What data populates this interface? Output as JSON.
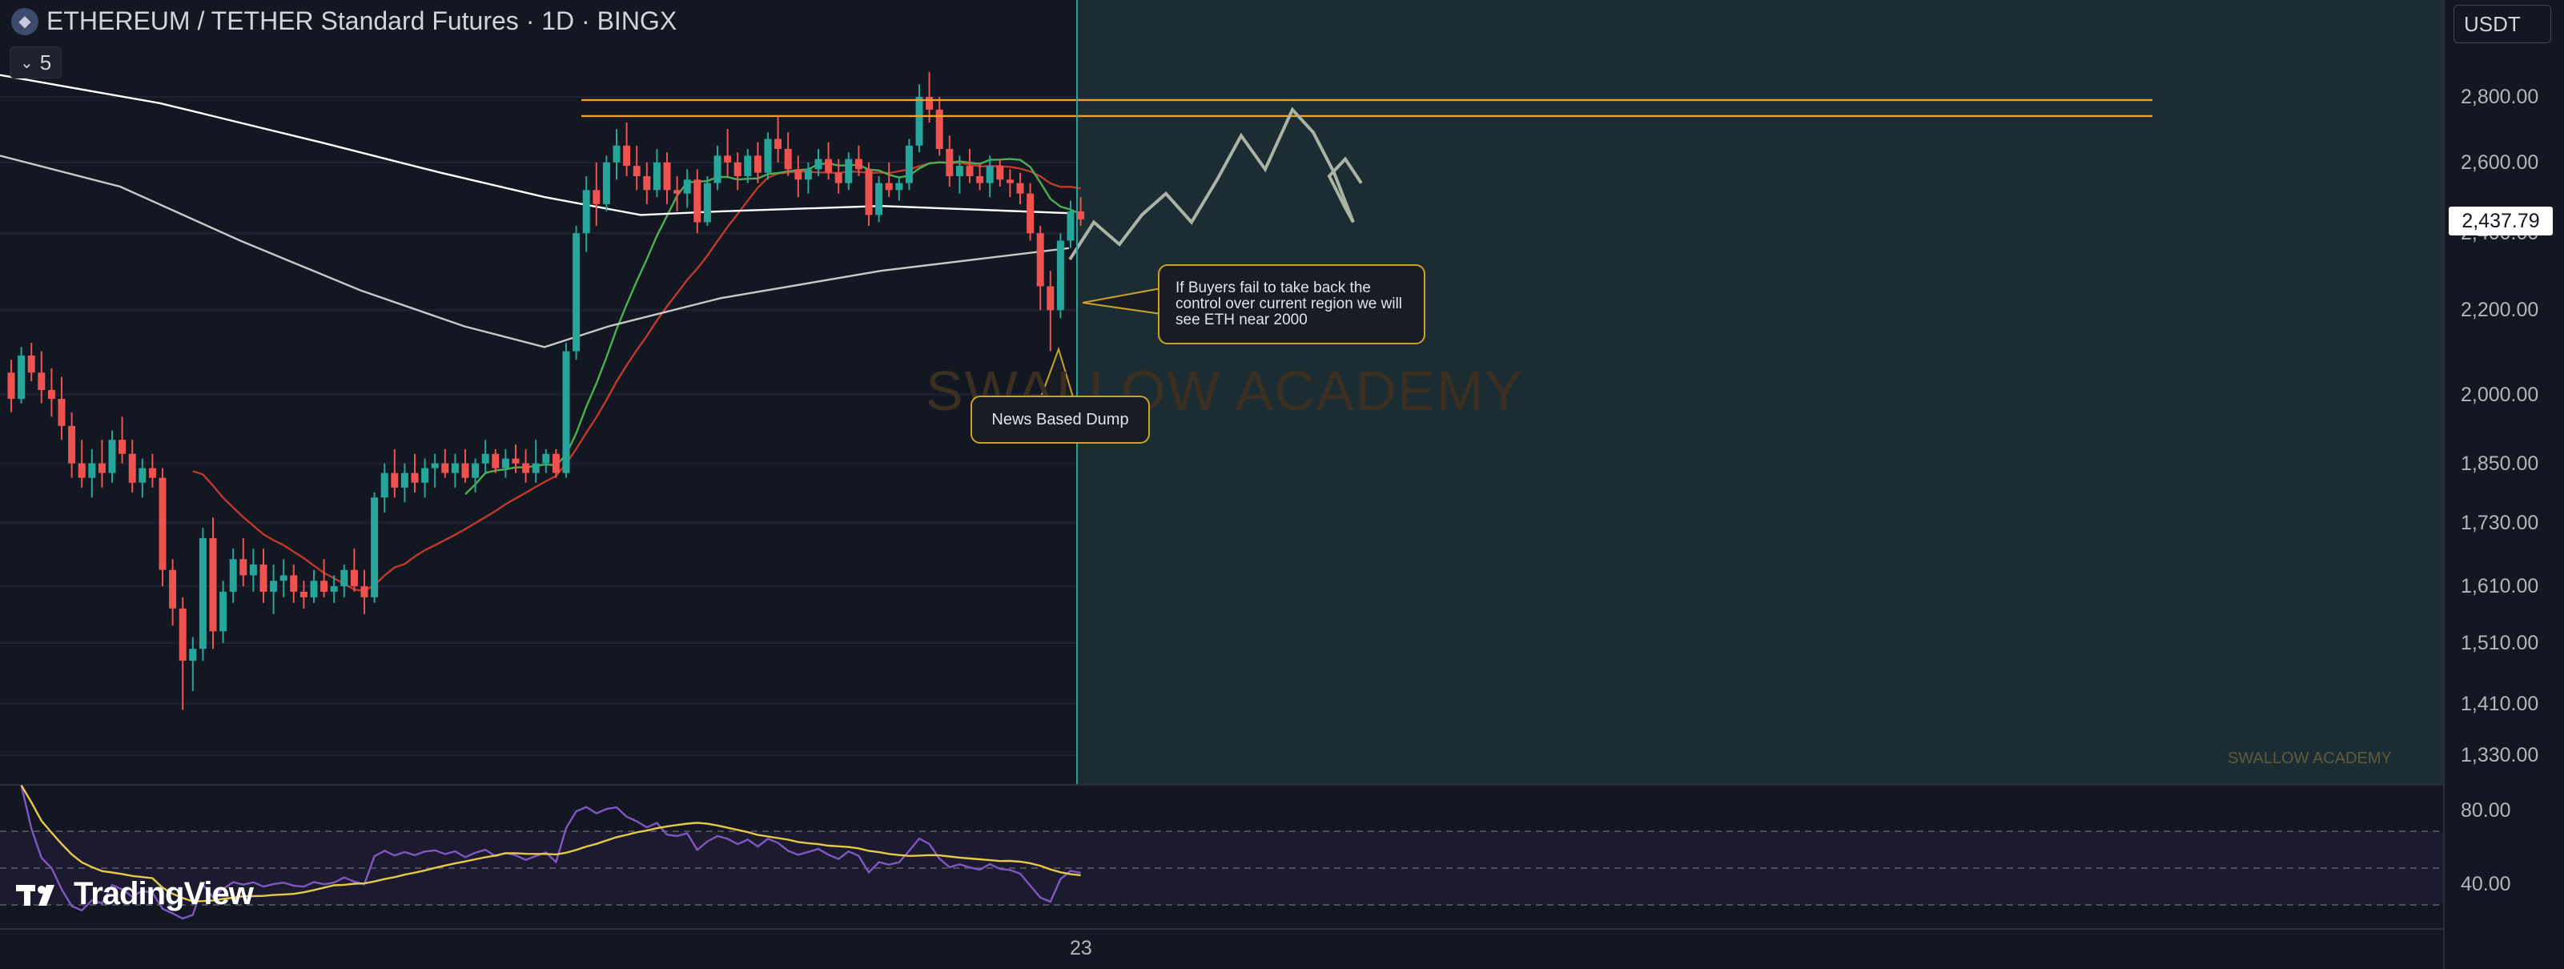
{
  "header": {
    "title": "ETHEREUM / TETHER Standard Futures · 1D · BINGX",
    "indicator_count": "5",
    "currency": "USDT"
  },
  "price_axis": {
    "labels": [
      "2,800.00",
      "2,600.00",
      "2,400.00",
      "2,200.00",
      "2,000.00",
      "1,850.00",
      "1,730.00",
      "1,610.00",
      "1,510.00",
      "1,410.00",
      "1,330.00"
    ],
    "last_price": "2,437.79"
  },
  "rsi_axis": {
    "labels": [
      "80.00",
      "40.00"
    ]
  },
  "time_axis": {
    "labels": [
      "23"
    ]
  },
  "annotations": {
    "buyers_note": "If Buyers fail to take back the control over current region we will see ETH near 2000",
    "dump_note": "News Based Dump"
  },
  "watermark": "SWALLOW ACADEMY",
  "watermark_small": "SWALLOW ACADEMY",
  "logo": "TradingView",
  "colors": {
    "background": "#131722",
    "up": "#26a69a",
    "down": "#ef5350",
    "resistance": "#f0a030",
    "projection_zone": "#1b2d33",
    "projection_path": "#a9b4a5",
    "ma_white": "#ffffff",
    "ma_grey": "#c8c8c8",
    "ma_green": "#4caf50",
    "ma_red": "#c0392b",
    "rsi_line": "#7e57c2",
    "rsi_ma": "#e6c84a"
  },
  "chart_data": {
    "type": "candlestick",
    "title": "ETHEREUM / TETHER Standard Futures · 1D · BINGX",
    "scale": "log",
    "ylim": [
      1300,
      2900
    ],
    "ohlc": [
      [
        2050,
        2080,
        1960,
        1990
      ],
      [
        1990,
        2110,
        1980,
        2090
      ],
      [
        2090,
        2120,
        2030,
        2050
      ],
      [
        2050,
        2100,
        1980,
        2010
      ],
      [
        2010,
        2060,
        1950,
        1990
      ],
      [
        1990,
        2040,
        1900,
        1930
      ],
      [
        1930,
        1960,
        1820,
        1850
      ],
      [
        1850,
        1900,
        1800,
        1820
      ],
      [
        1820,
        1880,
        1780,
        1850
      ],
      [
        1850,
        1900,
        1800,
        1830
      ],
      [
        1830,
        1920,
        1810,
        1900
      ],
      [
        1900,
        1950,
        1850,
        1870
      ],
      [
        1870,
        1900,
        1790,
        1810
      ],
      [
        1810,
        1860,
        1780,
        1840
      ],
      [
        1840,
        1870,
        1800,
        1820
      ],
      [
        1820,
        1840,
        1610,
        1640
      ],
      [
        1640,
        1660,
        1540,
        1570
      ],
      [
        1570,
        1590,
        1400,
        1480
      ],
      [
        1480,
        1520,
        1430,
        1500
      ],
      [
        1500,
        1720,
        1480,
        1700
      ],
      [
        1700,
        1740,
        1500,
        1530
      ],
      [
        1530,
        1620,
        1510,
        1600
      ],
      [
        1600,
        1680,
        1580,
        1660
      ],
      [
        1660,
        1700,
        1610,
        1630
      ],
      [
        1630,
        1680,
        1600,
        1650
      ],
      [
        1650,
        1680,
        1580,
        1600
      ],
      [
        1600,
        1650,
        1560,
        1620
      ],
      [
        1620,
        1660,
        1590,
        1630
      ],
      [
        1630,
        1650,
        1580,
        1600
      ],
      [
        1600,
        1620,
        1570,
        1590
      ],
      [
        1590,
        1640,
        1580,
        1620
      ],
      [
        1620,
        1660,
        1590,
        1600
      ],
      [
        1600,
        1630,
        1580,
        1610
      ],
      [
        1610,
        1650,
        1590,
        1640
      ],
      [
        1640,
        1680,
        1600,
        1610
      ],
      [
        1610,
        1640,
        1560,
        1590
      ],
      [
        1590,
        1790,
        1580,
        1780
      ],
      [
        1780,
        1850,
        1750,
        1830
      ],
      [
        1830,
        1880,
        1780,
        1800
      ],
      [
        1800,
        1850,
        1770,
        1830
      ],
      [
        1830,
        1870,
        1790,
        1810
      ],
      [
        1810,
        1860,
        1780,
        1840
      ],
      [
        1840,
        1870,
        1800,
        1850
      ],
      [
        1850,
        1880,
        1820,
        1830
      ],
      [
        1830,
        1870,
        1800,
        1850
      ],
      [
        1850,
        1880,
        1810,
        1820
      ],
      [
        1820,
        1860,
        1790,
        1850
      ],
      [
        1850,
        1900,
        1830,
        1870
      ],
      [
        1870,
        1880,
        1830,
        1840
      ],
      [
        1840,
        1880,
        1820,
        1860
      ],
      [
        1860,
        1890,
        1830,
        1850
      ],
      [
        1850,
        1880,
        1810,
        1830
      ],
      [
        1830,
        1900,
        1810,
        1850
      ],
      [
        1850,
        1880,
        1830,
        1870
      ],
      [
        1870,
        1880,
        1820,
        1830
      ],
      [
        1830,
        2120,
        1820,
        2100
      ],
      [
        2100,
        2420,
        2080,
        2400
      ],
      [
        2400,
        2560,
        2350,
        2520
      ],
      [
        2520,
        2600,
        2420,
        2480
      ],
      [
        2480,
        2620,
        2460,
        2600
      ],
      [
        2600,
        2700,
        2550,
        2650
      ],
      [
        2650,
        2720,
        2560,
        2590
      ],
      [
        2590,
        2650,
        2520,
        2560
      ],
      [
        2560,
        2600,
        2480,
        2520
      ],
      [
        2520,
        2640,
        2500,
        2600
      ],
      [
        2600,
        2630,
        2480,
        2520
      ],
      [
        2520,
        2560,
        2460,
        2510
      ],
      [
        2510,
        2580,
        2470,
        2550
      ],
      [
        2550,
        2580,
        2400,
        2430
      ],
      [
        2430,
        2560,
        2420,
        2540
      ],
      [
        2540,
        2650,
        2520,
        2620
      ],
      [
        2620,
        2700,
        2560,
        2600
      ],
      [
        2600,
        2630,
        2520,
        2560
      ],
      [
        2560,
        2640,
        2540,
        2620
      ],
      [
        2620,
        2660,
        2540,
        2570
      ],
      [
        2570,
        2690,
        2550,
        2670
      ],
      [
        2670,
        2740,
        2600,
        2640
      ],
      [
        2640,
        2690,
        2560,
        2580
      ],
      [
        2580,
        2620,
        2500,
        2550
      ],
      [
        2550,
        2600,
        2510,
        2580
      ],
      [
        2580,
        2640,
        2560,
        2610
      ],
      [
        2610,
        2660,
        2550,
        2570
      ],
      [
        2570,
        2610,
        2510,
        2540
      ],
      [
        2540,
        2630,
        2520,
        2610
      ],
      [
        2610,
        2650,
        2560,
        2580
      ],
      [
        2580,
        2600,
        2420,
        2450
      ],
      [
        2450,
        2560,
        2430,
        2540
      ],
      [
        2540,
        2600,
        2500,
        2520
      ],
      [
        2520,
        2560,
        2490,
        2540
      ],
      [
        2540,
        2670,
        2520,
        2650
      ],
      [
        2650,
        2840,
        2630,
        2800
      ],
      [
        2800,
        2880,
        2720,
        2760
      ],
      [
        2760,
        2800,
        2620,
        2640
      ],
      [
        2640,
        2680,
        2530,
        2560
      ],
      [
        2560,
        2620,
        2510,
        2590
      ],
      [
        2590,
        2640,
        2540,
        2560
      ],
      [
        2560,
        2600,
        2520,
        2540
      ],
      [
        2540,
        2620,
        2500,
        2590
      ],
      [
        2590,
        2610,
        2530,
        2550
      ],
      [
        2550,
        2580,
        2500,
        2540
      ],
      [
        2540,
        2570,
        2480,
        2510
      ],
      [
        2510,
        2540,
        2380,
        2400
      ],
      [
        2400,
        2420,
        2200,
        2260
      ],
      [
        2260,
        2300,
        2100,
        2200
      ],
      [
        2200,
        2400,
        2180,
        2380
      ],
      [
        2380,
        2490,
        2360,
        2460
      ],
      [
        2460,
        2500,
        2420,
        2438
      ]
    ],
    "resistance_levels": [
      2790,
      2740
    ],
    "projection_path": [
      [
        1336,
        2330
      ],
      [
        1366,
        2430
      ],
      [
        1398,
        2370
      ],
      [
        1426,
        2450
      ],
      [
        1456,
        2510
      ],
      [
        1488,
        2430
      ],
      [
        1520,
        2550
      ],
      [
        1550,
        2680
      ],
      [
        1580,
        2580
      ],
      [
        1614,
        2760
      ],
      [
        1640,
        2690
      ],
      [
        1666,
        2570
      ],
      [
        1690,
        2430
      ],
      [
        1680,
        2470
      ],
      [
        1660,
        2560
      ],
      [
        1680,
        2610
      ],
      [
        1700,
        2540
      ]
    ],
    "rsi_levels": [
      70,
      50,
      30
    ],
    "rsi_ylim": [
      20,
      100
    ]
  }
}
